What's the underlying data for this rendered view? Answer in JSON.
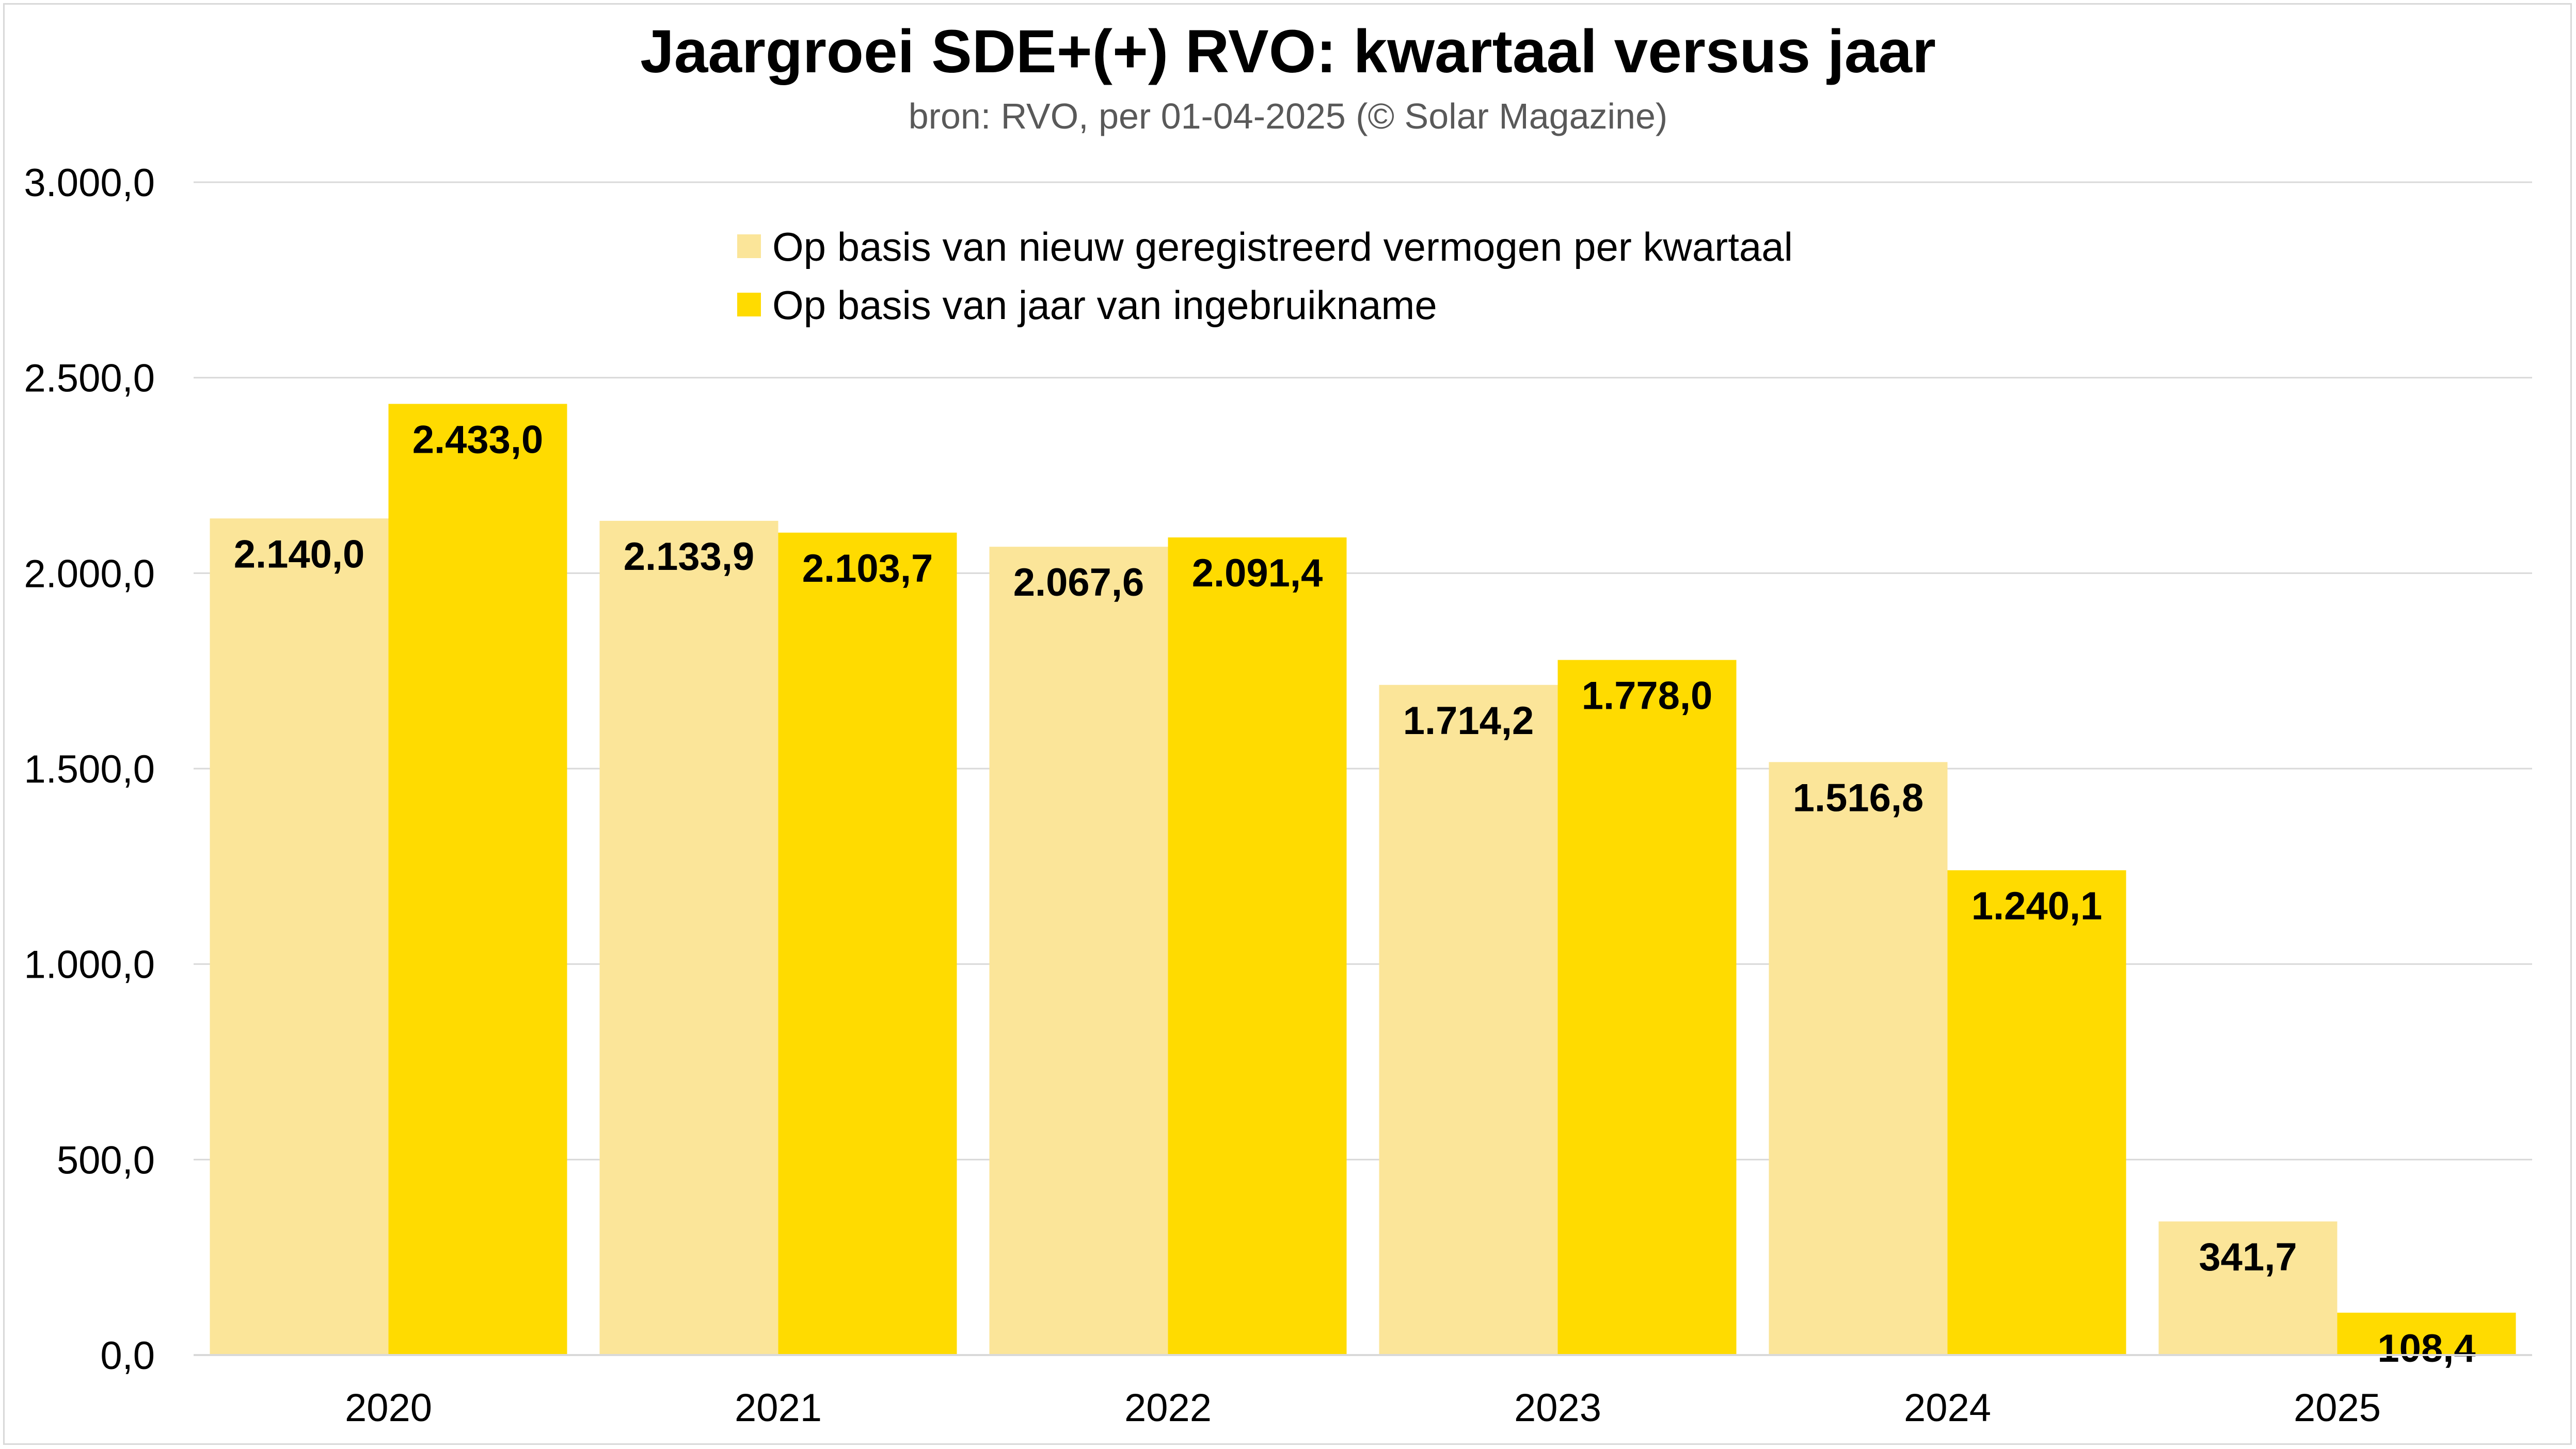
{
  "title": "Jaargroei SDE+(+) RVO: kwartaal versus jaar",
  "subtitle": "bron: RVO, per 01-04-2025 (© Solar Magazine)",
  "chart_data": {
    "type": "bar",
    "title": "Jaargroei SDE+(+) RVO: kwartaal versus jaar",
    "subtitle": "bron: RVO, per 01-04-2025 (© Solar Magazine)",
    "categories": [
      "2020",
      "2021",
      "2022",
      "2023",
      "2024",
      "2025"
    ],
    "series": [
      {
        "name": "Op basis van nieuw geregistreerd vermogen per kwartaal",
        "color": "#fbe599",
        "values": [
          2140.0,
          2133.9,
          2067.6,
          1714.2,
          1516.8,
          341.7
        ],
        "labels": [
          "2.140,0",
          "2.133,9",
          "2.067,6",
          "1.714,2",
          "1.516,8",
          "341,7"
        ]
      },
      {
        "name": "Op basis van jaar van ingebruikname",
        "color": "#ffdb00",
        "values": [
          2433.0,
          2103.7,
          2091.4,
          1778.0,
          1240.1,
          108.4
        ],
        "labels": [
          "2.433,0",
          "2.103,7",
          "2.091,4",
          "1.778,0",
          "1.240,1",
          "108,4"
        ]
      }
    ],
    "ylim": [
      0,
      3000
    ],
    "yticks": [
      0,
      500,
      1000,
      1500,
      2000,
      2500,
      3000
    ],
    "ytick_labels": [
      "0,0",
      "500,0",
      "1.000,0",
      "1.500,0",
      "2.000,0",
      "2.500,0",
      "3.000,0"
    ],
    "xlabel": "",
    "ylabel": "",
    "grid": true,
    "legend_position": "top-center"
  }
}
